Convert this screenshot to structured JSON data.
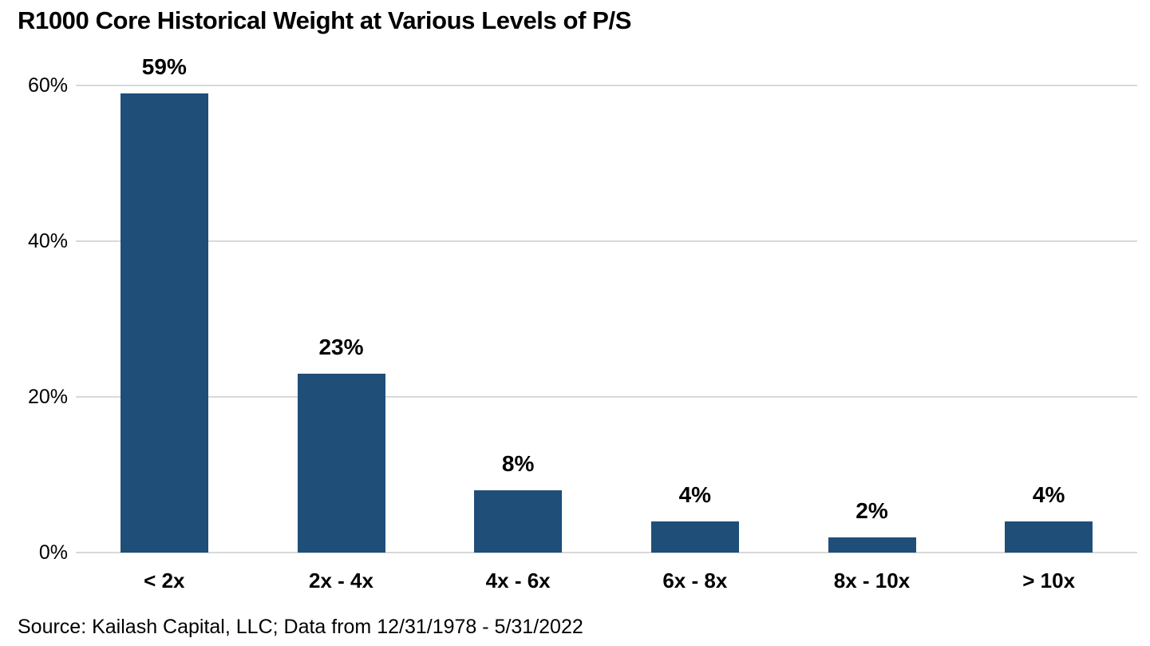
{
  "title": "R1000 Core Historical Weight at Various Levels of P/S",
  "source": "Source: Kailash Capital, LLC; Data from 12/31/1978 - 5/31/2022",
  "colors": {
    "bar": "#1F4E79",
    "gridline": "#D9D9D9",
    "text": "#000000",
    "background": "#FFFFFF"
  },
  "chart_data": {
    "type": "bar",
    "title": "R1000 Core Historical Weight at Various Levels of P/S",
    "categories": [
      "< 2x",
      "2x - 4x",
      "4x - 6x",
      "6x - 8x",
      "8x - 10x",
      "> 10x"
    ],
    "values": [
      59,
      23,
      8,
      4,
      2,
      4
    ],
    "data_labels": [
      "59%",
      "23%",
      "8%",
      "4%",
      "2%",
      "4%"
    ],
    "xlabel": "",
    "ylabel": "",
    "ylim": [
      0,
      60
    ],
    "yticks": [
      0,
      20,
      40,
      60
    ],
    "ytick_labels": [
      "0%",
      "20%",
      "40%",
      "60%"
    ],
    "grid": true,
    "legend_position": "none",
    "bar_color": "#1F4E79",
    "annotation": "Source: Kailash Capital, LLC; Data from 12/31/1978 - 5/31/2022"
  }
}
